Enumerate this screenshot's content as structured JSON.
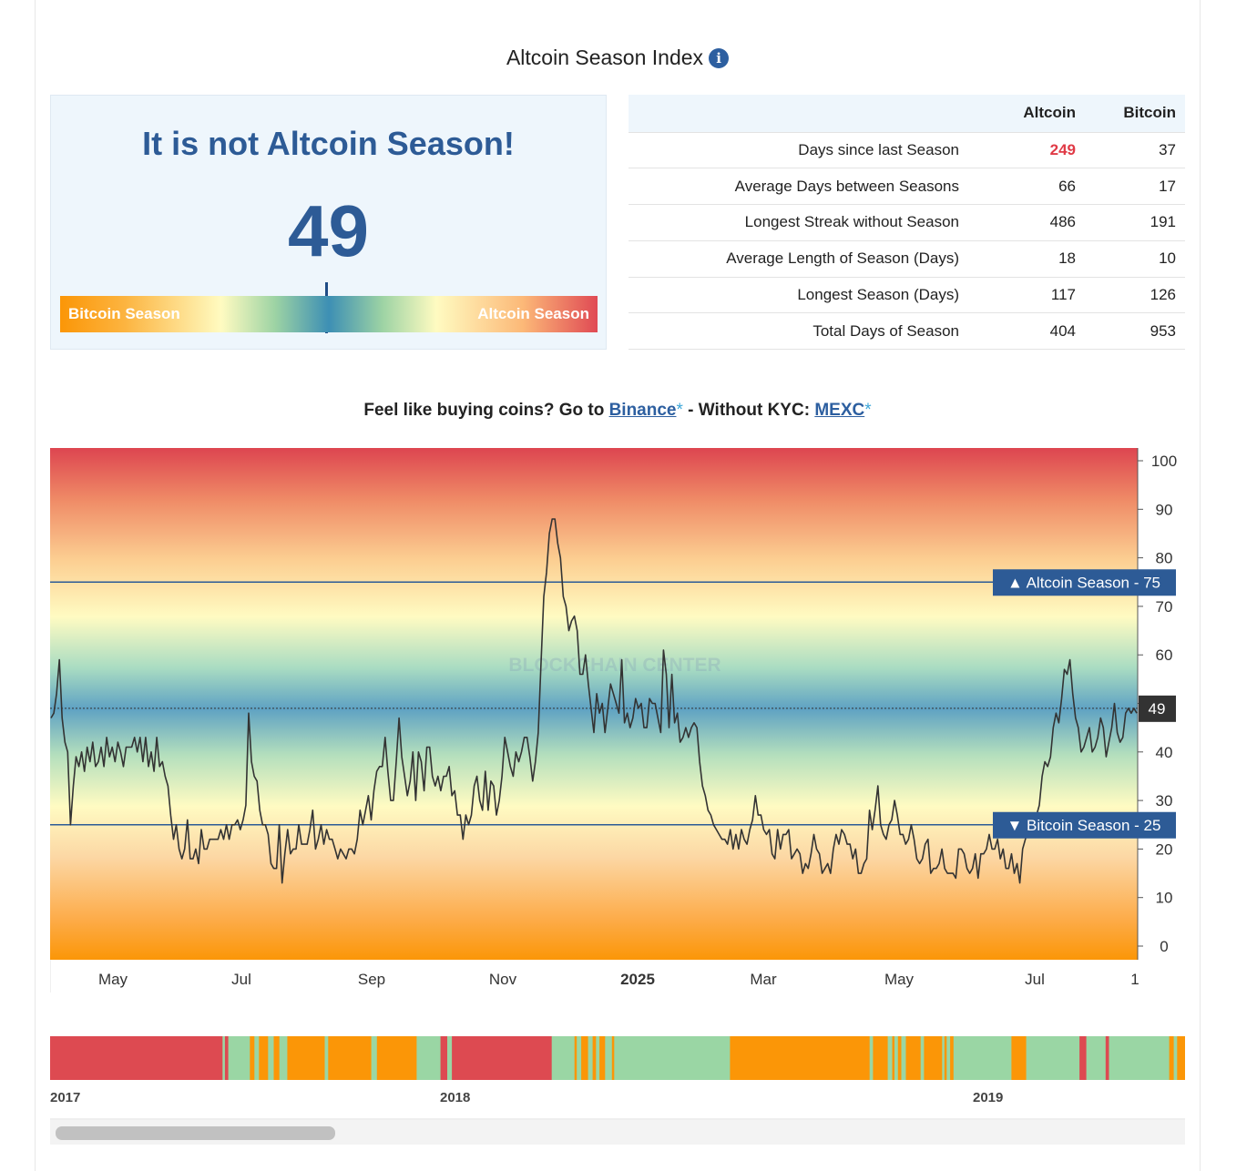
{
  "header": {
    "title": "Altcoin Season Index",
    "info_icon": "info-icon"
  },
  "status": {
    "headline": "It is not Altcoin Season!",
    "value": "49",
    "gauge_value": 49,
    "gauge_left_label": "Bitcoin Season",
    "gauge_right_label": "Altcoin Season"
  },
  "stats": {
    "columns": [
      "",
      "Altcoin",
      "Bitcoin"
    ],
    "rows": [
      {
        "label": "Days since last Season",
        "altcoin": "249",
        "bitcoin": "37"
      },
      {
        "label": "Average Days between Seasons",
        "altcoin": "66",
        "bitcoin": "17"
      },
      {
        "label": "Longest Streak without Season",
        "altcoin": "486",
        "bitcoin": "191"
      },
      {
        "label": "Average Length of Season (Days)",
        "altcoin": "18",
        "bitcoin": "10"
      },
      {
        "label": "Longest Season (Days)",
        "altcoin": "117",
        "bitcoin": "126"
      },
      {
        "label": "Total Days of Season",
        "altcoin": "404",
        "bitcoin": "953"
      }
    ],
    "highlight_color": "#e03a46"
  },
  "promo": {
    "prefix": "Feel like buying coins? Go to ",
    "link1": "Binance",
    "star": "*",
    "middle": " - Without KYC: ",
    "link2": "MEXC"
  },
  "chart_data": {
    "type": "line",
    "watermark": "BLOCKCHAIN CENTER",
    "ylim": [
      0,
      100
    ],
    "y_ticks": [
      0,
      10,
      20,
      30,
      40,
      50,
      60,
      70,
      80,
      90,
      100
    ],
    "x_tick_labels": [
      "May",
      "Jul",
      "Sep",
      "Nov",
      "2025",
      "Mar",
      "May",
      "Jul",
      "1"
    ],
    "current_value": 49,
    "current_label": "49",
    "plot_lines": [
      {
        "value": 75,
        "label": "▲ Altcoin Season - 75"
      },
      {
        "value": 25,
        "label": "▼ Bitcoin Season - 25"
      }
    ],
    "series": [
      {
        "values": [
          47,
          48,
          52,
          59,
          47,
          42,
          40,
          25,
          33,
          39,
          37,
          40,
          36,
          41,
          38,
          42,
          37,
          38,
          41,
          37,
          43,
          39,
          41,
          38,
          42,
          40,
          37,
          41,
          41,
          41,
          43,
          40,
          43,
          38,
          43,
          37,
          40,
          36,
          43,
          37,
          38,
          35,
          33,
          27,
          22,
          25,
          20,
          18,
          20,
          26,
          18,
          18,
          20,
          17,
          24,
          20,
          20,
          22,
          22,
          22,
          22,
          24,
          22,
          25,
          22,
          25,
          25,
          26,
          24,
          26,
          29,
          48,
          38,
          35,
          34,
          28,
          25,
          25,
          23,
          17,
          16,
          16,
          25,
          13,
          19,
          24,
          19,
          20,
          20,
          25,
          21,
          21,
          21,
          24,
          28,
          20,
          22,
          25,
          21,
          24,
          22,
          22,
          20,
          18,
          20,
          19,
          18,
          20,
          20,
          19,
          22,
          28,
          25,
          28,
          31,
          26,
          32,
          36,
          37,
          37,
          43,
          36,
          30,
          30,
          38,
          47,
          39,
          35,
          31,
          34,
          40,
          30,
          40,
          38,
          32,
          41,
          41,
          35,
          33,
          35,
          32,
          35,
          35,
          37,
          31,
          32,
          27,
          27,
          22,
          27,
          25,
          27,
          33,
          35,
          30,
          28,
          36,
          28,
          34,
          33,
          27,
          30,
          35,
          43,
          40,
          37,
          35,
          40,
          38,
          40,
          43,
          43,
          39,
          34,
          38,
          44,
          58,
          72,
          77,
          85,
          88,
          88,
          83,
          80,
          72,
          70,
          65,
          67,
          68,
          65,
          56,
          56,
          60,
          54,
          49,
          44,
          52,
          48,
          50,
          44,
          49,
          54,
          52,
          50,
          48,
          59,
          46,
          48,
          45,
          47,
          51,
          49,
          50,
          45,
          45,
          51,
          50,
          50,
          47,
          44,
          61,
          56,
          45,
          56,
          46,
          48,
          42,
          43,
          45,
          43,
          45,
          46,
          45,
          38,
          33,
          31,
          28,
          27,
          25,
          24,
          23,
          22,
          22,
          21,
          24,
          20,
          23,
          20,
          24,
          22,
          21,
          24,
          26,
          31,
          27,
          27,
          24,
          23,
          24,
          19,
          18,
          24,
          20,
          23,
          23,
          24,
          18,
          19,
          20,
          19,
          15,
          17,
          16,
          19,
          23,
          20,
          19,
          15,
          16,
          17,
          15,
          20,
          23,
          21,
          24,
          23,
          21,
          21,
          18,
          20,
          15,
          15,
          17,
          18,
          28,
          24,
          28,
          33,
          25,
          23,
          22,
          25,
          26,
          30,
          27,
          23,
          23,
          21,
          22,
          25,
          22,
          18,
          17,
          18,
          21,
          22,
          15,
          16,
          16,
          17,
          20,
          16,
          15,
          15,
          15,
          14,
          20,
          20,
          19,
          16,
          15,
          16,
          19,
          14,
          19,
          19,
          20,
          23,
          20,
          20,
          22,
          18,
          20,
          16,
          16,
          19,
          15,
          17,
          13,
          20,
          22,
          24,
          27,
          27,
          27,
          29,
          35,
          38,
          37,
          39,
          45,
          48,
          46,
          51,
          57,
          56,
          59,
          52,
          47,
          45,
          40,
          41,
          43,
          45,
          40,
          41,
          43,
          47,
          45,
          39,
          42,
          45,
          50,
          44,
          42,
          43,
          48,
          49,
          48,
          49,
          48
        ]
      }
    ]
  },
  "navigator": {
    "labels": [
      "2017",
      "2018",
      "2019"
    ],
    "colors": {
      "altcoin": "#dd4a51",
      "neutral": "#9ad6a4",
      "bitcoin": "#fb9607"
    },
    "segments": [
      [
        "altcoin",
        0,
        0.152
      ],
      [
        "neutral",
        0.152,
        0.168
      ],
      [
        "altcoin",
        0.154,
        0.157
      ],
      [
        "bitcoin",
        0.176,
        0.18
      ],
      [
        "bitcoin",
        0.184,
        0.192
      ],
      [
        "bitcoin",
        0.197,
        0.202
      ],
      [
        "bitcoin",
        0.209,
        0.242
      ],
      [
        "bitcoin",
        0.245,
        0.283
      ],
      [
        "bitcoin",
        0.288,
        0.323
      ],
      [
        "neutral",
        0.323,
        0.344
      ],
      [
        "altcoin",
        0.344,
        0.35
      ],
      [
        "neutral",
        0.35,
        0.354
      ],
      [
        "altcoin",
        0.354,
        0.442
      ],
      [
        "bitcoin",
        0.462,
        0.464
      ],
      [
        "bitcoin",
        0.468,
        0.474
      ],
      [
        "bitcoin",
        0.478,
        0.481
      ],
      [
        "bitcoin",
        0.484,
        0.489
      ],
      [
        "bitcoin",
        0.495,
        0.497
      ],
      [
        "bitcoin",
        0.599,
        0.722
      ],
      [
        "bitcoin",
        0.725,
        0.738
      ],
      [
        "bitcoin",
        0.742,
        0.744
      ],
      [
        "bitcoin",
        0.747,
        0.75
      ],
      [
        "bitcoin",
        0.754,
        0.767
      ],
      [
        "bitcoin",
        0.77,
        0.786
      ],
      [
        "bitcoin",
        0.788,
        0.79
      ],
      [
        "bitcoin",
        0.793,
        0.796
      ],
      [
        "bitcoin",
        0.847,
        0.86
      ],
      [
        "altcoin",
        0.907,
        0.913
      ],
      [
        "altcoin",
        0.93,
        0.933
      ],
      [
        "bitcoin",
        0.986,
        0.99
      ],
      [
        "bitcoin",
        0.993,
        1.0
      ]
    ]
  }
}
